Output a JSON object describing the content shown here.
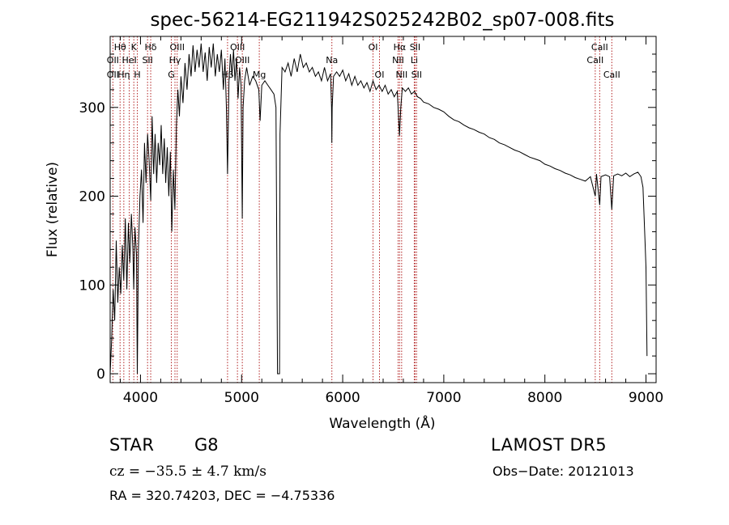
{
  "chart_data": {
    "type": "line",
    "title": "spec-56214-EG211942S025242B02_sp07-008.fits",
    "xlabel": "Wavelength (Å)",
    "ylabel": "Flux (relative)",
    "xlim": [
      3700,
      9100
    ],
    "ylim": [
      -10,
      380
    ],
    "xticks": [
      4000,
      5000,
      6000,
      7000,
      8000,
      9000
    ],
    "yticks": [
      0,
      100,
      200,
      300
    ],
    "line_color": "#000000",
    "marker_color": "#b22222",
    "grid": false,
    "series": [
      {
        "points": [
          [
            3700,
            0
          ],
          [
            3715,
            40
          ],
          [
            3730,
            95
          ],
          [
            3745,
            60
          ],
          [
            3760,
            150
          ],
          [
            3775,
            80
          ],
          [
            3790,
            120
          ],
          [
            3805,
            90
          ],
          [
            3820,
            145
          ],
          [
            3835,
            105
          ],
          [
            3850,
            175
          ],
          [
            3865,
            95
          ],
          [
            3880,
            170
          ],
          [
            3895,
            125
          ],
          [
            3910,
            180
          ],
          [
            3925,
            140
          ],
          [
            3933,
            95
          ],
          [
            3945,
            165
          ],
          [
            3960,
            135
          ],
          [
            3968,
            0
          ],
          [
            3980,
            140
          ],
          [
            3995,
            200
          ],
          [
            4010,
            230
          ],
          [
            4025,
            170
          ],
          [
            4040,
            260
          ],
          [
            4055,
            215
          ],
          [
            4070,
            270
          ],
          [
            4085,
            240
          ],
          [
            4101,
            195
          ],
          [
            4115,
            290
          ],
          [
            4130,
            225
          ],
          [
            4145,
            270
          ],
          [
            4160,
            215
          ],
          [
            4175,
            260
          ],
          [
            4190,
            235
          ],
          [
            4205,
            280
          ],
          [
            4220,
            225
          ],
          [
            4235,
            265
          ],
          [
            4250,
            215
          ],
          [
            4265,
            255
          ],
          [
            4280,
            200
          ],
          [
            4295,
            250
          ],
          [
            4310,
            160
          ],
          [
            4325,
            230
          ],
          [
            4340,
            185
          ],
          [
            4355,
            280
          ],
          [
            4370,
            320
          ],
          [
            4385,
            290
          ],
          [
            4400,
            335
          ],
          [
            4420,
            305
          ],
          [
            4440,
            350
          ],
          [
            4460,
            320
          ],
          [
            4480,
            360
          ],
          [
            4500,
            335
          ],
          [
            4520,
            370
          ],
          [
            4540,
            340
          ],
          [
            4560,
            365
          ],
          [
            4580,
            345
          ],
          [
            4600,
            372
          ],
          [
            4620,
            340
          ],
          [
            4640,
            362
          ],
          [
            4660,
            330
          ],
          [
            4680,
            368
          ],
          [
            4700,
            345
          ],
          [
            4720,
            372
          ],
          [
            4740,
            335
          ],
          [
            4760,
            360
          ],
          [
            4780,
            340
          ],
          [
            4800,
            365
          ],
          [
            4820,
            320
          ],
          [
            4835,
            355
          ],
          [
            4850,
            300
          ],
          [
            4861,
            225
          ],
          [
            4875,
            330
          ],
          [
            4890,
            360
          ],
          [
            4905,
            335
          ],
          [
            4920,
            365
          ],
          [
            4935,
            330
          ],
          [
            4950,
            355
          ],
          [
            4965,
            310
          ],
          [
            4980,
            345
          ],
          [
            4995,
            325
          ],
          [
            5007,
            175
          ],
          [
            5015,
            300
          ],
          [
            5030,
            330
          ],
          [
            5050,
            345
          ],
          [
            5080,
            325
          ],
          [
            5110,
            335
          ],
          [
            5140,
            330
          ],
          [
            5170,
            320
          ],
          [
            5183,
            285
          ],
          [
            5200,
            325
          ],
          [
            5230,
            330
          ],
          [
            5260,
            325
          ],
          [
            5290,
            320
          ],
          [
            5320,
            315
          ],
          [
            5340,
            300
          ],
          [
            5355,
            0
          ],
          [
            5375,
            0
          ],
          [
            5380,
            270
          ],
          [
            5400,
            345
          ],
          [
            5430,
            340
          ],
          [
            5460,
            350
          ],
          [
            5490,
            335
          ],
          [
            5520,
            355
          ],
          [
            5550,
            340
          ],
          [
            5580,
            360
          ],
          [
            5610,
            345
          ],
          [
            5640,
            350
          ],
          [
            5670,
            340
          ],
          [
            5700,
            345
          ],
          [
            5730,
            335
          ],
          [
            5760,
            340
          ],
          [
            5790,
            330
          ],
          [
            5820,
            345
          ],
          [
            5850,
            330
          ],
          [
            5880,
            338
          ],
          [
            5890,
            300
          ],
          [
            5893,
            260
          ],
          [
            5896,
            300
          ],
          [
            5910,
            335
          ],
          [
            5940,
            340
          ],
          [
            5970,
            335
          ],
          [
            6000,
            342
          ],
          [
            6030,
            330
          ],
          [
            6060,
            338
          ],
          [
            6090,
            325
          ],
          [
            6120,
            335
          ],
          [
            6150,
            325
          ],
          [
            6180,
            330
          ],
          [
            6210,
            322
          ],
          [
            6240,
            328
          ],
          [
            6270,
            318
          ],
          [
            6300,
            330
          ],
          [
            6330,
            320
          ],
          [
            6360,
            325
          ],
          [
            6390,
            318
          ],
          [
            6420,
            325
          ],
          [
            6450,
            315
          ],
          [
            6480,
            320
          ],
          [
            6510,
            312
          ],
          [
            6540,
            318
          ],
          [
            6562,
            268
          ],
          [
            6575,
            300
          ],
          [
            6590,
            322
          ],
          [
            6620,
            318
          ],
          [
            6650,
            322
          ],
          [
            6680,
            315
          ],
          [
            6710,
            318
          ],
          [
            6740,
            312
          ],
          [
            6770,
            310
          ],
          [
            6800,
            306
          ],
          [
            6850,
            304
          ],
          [
            6900,
            300
          ],
          [
            6950,
            298
          ],
          [
            7000,
            295
          ],
          [
            7050,
            290
          ],
          [
            7100,
            286
          ],
          [
            7150,
            284
          ],
          [
            7200,
            280
          ],
          [
            7250,
            277
          ],
          [
            7300,
            275
          ],
          [
            7350,
            272
          ],
          [
            7400,
            270
          ],
          [
            7450,
            266
          ],
          [
            7500,
            264
          ],
          [
            7550,
            260
          ],
          [
            7600,
            258
          ],
          [
            7650,
            255
          ],
          [
            7700,
            252
          ],
          [
            7750,
            250
          ],
          [
            7800,
            247
          ],
          [
            7850,
            244
          ],
          [
            7900,
            242
          ],
          [
            7950,
            240
          ],
          [
            8000,
            236
          ],
          [
            8050,
            234
          ],
          [
            8100,
            231
          ],
          [
            8150,
            229
          ],
          [
            8200,
            226
          ],
          [
            8250,
            224
          ],
          [
            8300,
            221
          ],
          [
            8350,
            219
          ],
          [
            8400,
            217
          ],
          [
            8450,
            222
          ],
          [
            8498,
            200
          ],
          [
            8510,
            225
          ],
          [
            8542,
            190
          ],
          [
            8555,
            222
          ],
          [
            8600,
            224
          ],
          [
            8640,
            222
          ],
          [
            8662,
            185
          ],
          [
            8680,
            223
          ],
          [
            8720,
            225
          ],
          [
            8760,
            223
          ],
          [
            8800,
            226
          ],
          [
            8840,
            222
          ],
          [
            8880,
            225
          ],
          [
            8920,
            227
          ],
          [
            8950,
            222
          ],
          [
            8970,
            210
          ],
          [
            8990,
            150
          ],
          [
            9000,
            120
          ],
          [
            9010,
            20
          ]
        ]
      }
    ],
    "lines": [
      {
        "name": "Hθ",
        "x": 3798,
        "row": 0
      },
      {
        "name": "OII",
        "x": 3727,
        "row": 1
      },
      {
        "name": "OII",
        "x": 3727,
        "row": 2
      },
      {
        "name": "Hη",
        "x": 3835,
        "row": 2
      },
      {
        "name": "K",
        "x": 3934,
        "row": 0
      },
      {
        "name": "HeI",
        "x": 3889,
        "row": 1
      },
      {
        "name": "H",
        "x": 3969,
        "row": 2
      },
      {
        "name": "Hδ",
        "x": 4101,
        "row": 0
      },
      {
        "name": "SII",
        "x": 4070,
        "row": 1
      },
      {
        "name": "OIII",
        "x": 4363,
        "row": 0
      },
      {
        "name": "Hγ",
        "x": 4341,
        "row": 1
      },
      {
        "name": "G",
        "x": 4305,
        "row": 2
      },
      {
        "name": "OIII",
        "x": 4959,
        "row": 0
      },
      {
        "name": "OIII",
        "x": 5007,
        "row": 1
      },
      {
        "name": "Hβ",
        "x": 4861,
        "row": 2
      },
      {
        "name": "Mg",
        "x": 5175,
        "row": 2
      },
      {
        "name": "Na",
        "x": 5893,
        "row": 1
      },
      {
        "name": "OI",
        "x": 6300,
        "row": 0
      },
      {
        "name": "OI",
        "x": 6364,
        "row": 2
      },
      {
        "name": "Hα",
        "x": 6563,
        "row": 0
      },
      {
        "name": "SII",
        "x": 6716,
        "row": 0
      },
      {
        "name": "NII",
        "x": 6548,
        "row": 1
      },
      {
        "name": "Li",
        "x": 6708,
        "row": 1
      },
      {
        "name": "NII",
        "x": 6583,
        "row": 2
      },
      {
        "name": "SII",
        "x": 6731,
        "row": 2
      },
      {
        "name": "CaII",
        "x": 8542,
        "row": 0
      },
      {
        "name": "CaII",
        "x": 8498,
        "row": 1
      },
      {
        "name": "CaII",
        "x": 8662,
        "row": 2
      }
    ]
  },
  "info": {
    "class_type": "STAR",
    "subclass": "G8",
    "survey": "LAMOST DR5",
    "cz": "cz = −35.5 ± 4.7 km/s",
    "obs_date": "Obs−Date: 20121013",
    "radec": "RA = 320.74203, DEC =  −4.75336"
  }
}
